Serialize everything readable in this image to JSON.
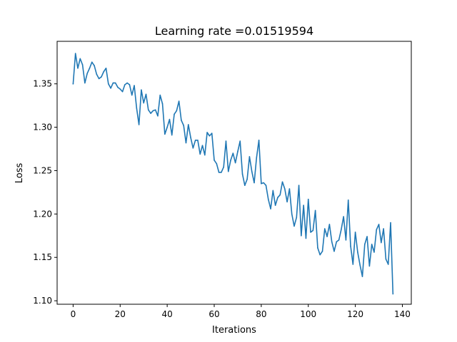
{
  "chart_data": {
    "type": "line",
    "title": "Learning rate =0.01519594",
    "xlabel": "Iterations",
    "ylabel": "Loss",
    "xlim": [
      -6.8,
      143.8
    ],
    "ylim": [
      1.096,
      1.399
    ],
    "xticks": [
      0,
      20,
      40,
      60,
      80,
      100,
      120,
      140
    ],
    "yticks": [
      1.1,
      1.15,
      1.2,
      1.25,
      1.3,
      1.35
    ],
    "xtick_labels": [
      "0",
      "20",
      "40",
      "60",
      "80",
      "100",
      "120",
      "140"
    ],
    "ytick_labels": [
      "1.10",
      "1.15",
      "1.20",
      "1.25",
      "1.30",
      "1.35"
    ],
    "grid": false,
    "series": [
      {
        "name": "loss",
        "color": "#1f77b4",
        "x": [
          0,
          1,
          2,
          3,
          4,
          5,
          6,
          7,
          8,
          9,
          10,
          11,
          12,
          13,
          14,
          15,
          16,
          17,
          18,
          19,
          20,
          21,
          22,
          23,
          24,
          25,
          26,
          27,
          28,
          29,
          30,
          31,
          32,
          33,
          34,
          35,
          36,
          37,
          38,
          39,
          40,
          41,
          42,
          43,
          44,
          45,
          46,
          47,
          48,
          49,
          50,
          51,
          52,
          53,
          54,
          55,
          56,
          57,
          58,
          59,
          60,
          61,
          62,
          63,
          64,
          65,
          66,
          67,
          68,
          69,
          70,
          71,
          72,
          73,
          74,
          75,
          76,
          77,
          78,
          79,
          80,
          81,
          82,
          83,
          84,
          85,
          86,
          87,
          88,
          89,
          90,
          91,
          92,
          93,
          94,
          95,
          96,
          97,
          98,
          99,
          100,
          101,
          102,
          103,
          104,
          105,
          106,
          107,
          108,
          109,
          110,
          111,
          112,
          113,
          114,
          115,
          116,
          117,
          118,
          119,
          120,
          121,
          122,
          123,
          124,
          125,
          126,
          127,
          128,
          129,
          130,
          131,
          132,
          133,
          134,
          135,
          136
        ],
        "values": [
          1.35,
          1.385,
          1.368,
          1.379,
          1.372,
          1.351,
          1.362,
          1.368,
          1.375,
          1.371,
          1.361,
          1.356,
          1.358,
          1.364,
          1.368,
          1.35,
          1.345,
          1.351,
          1.351,
          1.346,
          1.344,
          1.341,
          1.349,
          1.351,
          1.349,
          1.337,
          1.348,
          1.322,
          1.303,
          1.343,
          1.328,
          1.338,
          1.32,
          1.316,
          1.319,
          1.32,
          1.313,
          1.337,
          1.327,
          1.292,
          1.3,
          1.309,
          1.291,
          1.315,
          1.319,
          1.33,
          1.308,
          1.302,
          1.282,
          1.303,
          1.288,
          1.276,
          1.285,
          1.285,
          1.269,
          1.279,
          1.268,
          1.294,
          1.29,
          1.293,
          1.262,
          1.258,
          1.248,
          1.248,
          1.254,
          1.284,
          1.249,
          1.262,
          1.27,
          1.259,
          1.272,
          1.284,
          1.246,
          1.233,
          1.24,
          1.266,
          1.249,
          1.236,
          1.265,
          1.285,
          1.235,
          1.236,
          1.233,
          1.217,
          1.206,
          1.227,
          1.21,
          1.219,
          1.222,
          1.237,
          1.229,
          1.214,
          1.229,
          1.2,
          1.186,
          1.196,
          1.233,
          1.175,
          1.21,
          1.172,
          1.217,
          1.179,
          1.181,
          1.204,
          1.161,
          1.153,
          1.157,
          1.183,
          1.174,
          1.188,
          1.168,
          1.157,
          1.168,
          1.17,
          1.182,
          1.197,
          1.17,
          1.216,
          1.163,
          1.142,
          1.179,
          1.156,
          1.141,
          1.128,
          1.165,
          1.174,
          1.14,
          1.165,
          1.156,
          1.182,
          1.188,
          1.167,
          1.183,
          1.148,
          1.142,
          1.19,
          1.108
        ]
      }
    ]
  }
}
